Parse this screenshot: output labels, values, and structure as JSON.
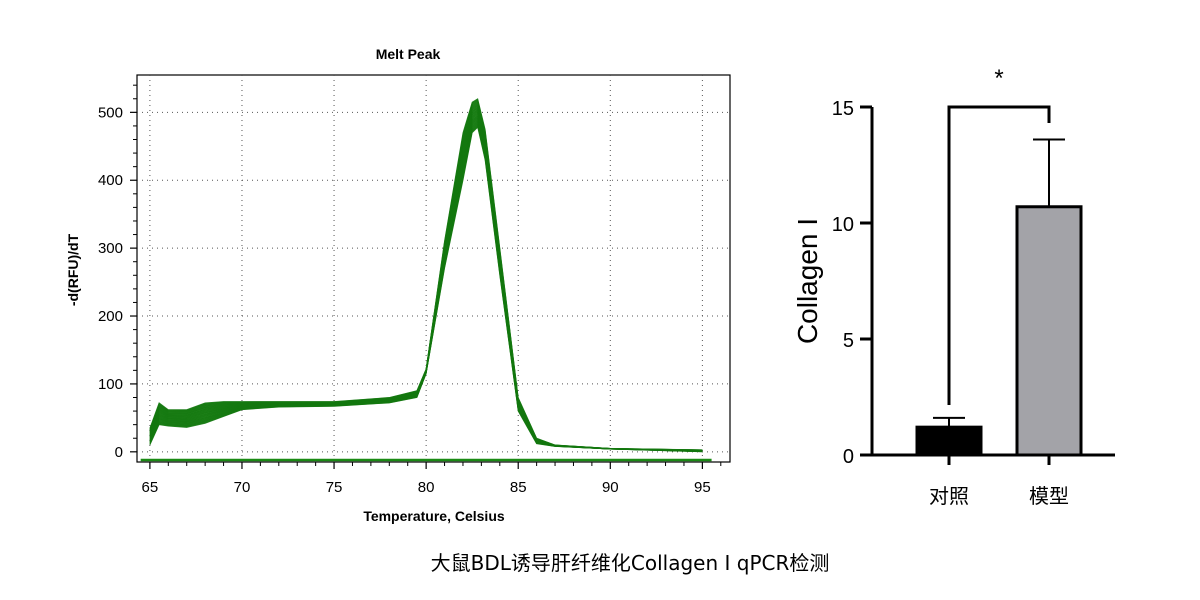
{
  "caption": "大鼠BDL诱导肝纤维化Collagen I qPCR检测",
  "chart_data": [
    {
      "type": "line",
      "title": "Melt Peak",
      "xlabel": "Temperature, Celsius",
      "ylabel": "-d(RFU)/dT",
      "xlim": [
        64.3,
        96.5
      ],
      "ylim": [
        -15,
        555
      ],
      "x_ticks": [
        65,
        70,
        75,
        80,
        85,
        90,
        95
      ],
      "y_ticks": [
        0,
        100,
        200,
        300,
        400,
        500
      ],
      "grid": true,
      "line_color": "#1a8a14",
      "baseline": {
        "x": [
          64.5,
          95.5
        ],
        "y": [
          -12,
          -12
        ]
      },
      "curve_envelope": {
        "x": [
          65,
          65.5,
          66,
          67,
          68,
          69,
          70,
          72,
          75,
          78,
          79.5,
          80,
          81,
          82,
          82.5,
          82.8,
          83.2,
          84,
          85,
          86,
          87,
          90,
          95
        ],
        "y_low": [
          10,
          40,
          38,
          36,
          42,
          52,
          62,
          66,
          67,
          72,
          80,
          115,
          270,
          400,
          470,
          478,
          430,
          260,
          60,
          12,
          8,
          4,
          0
        ],
        "y_high": [
          35,
          72,
          62,
          62,
          72,
          74,
          74,
          74,
          74,
          80,
          90,
          122,
          310,
          470,
          515,
          520,
          475,
          300,
          80,
          20,
          10,
          5,
          3
        ]
      }
    },
    {
      "type": "bar",
      "ylabel": "Collagen I",
      "categories": [
        "对照",
        "模型"
      ],
      "values": [
        1.2,
        10.7
      ],
      "errors": [
        0.4,
        2.9
      ],
      "colors": [
        "#000000",
        "#a3a3a8"
      ],
      "ylim": [
        0,
        15
      ],
      "y_ticks": [
        0,
        5,
        10,
        15
      ],
      "significance": "*"
    }
  ]
}
